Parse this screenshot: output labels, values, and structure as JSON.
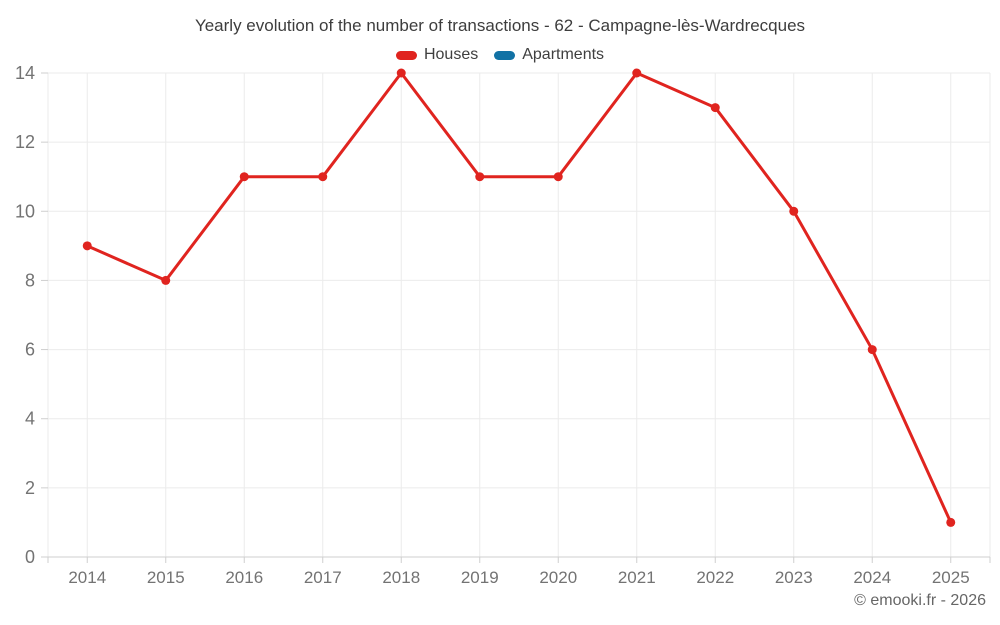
{
  "title": "Yearly evolution of the number of transactions - 62 - Campagne-lès-Wardrecques",
  "footer": "© emooki.fr - 2026",
  "legend": {
    "items": [
      {
        "label": "Houses",
        "color": "#e0241f"
      },
      {
        "label": "Apartments",
        "color": "#1272a5"
      }
    ]
  },
  "colors": {
    "grid": "#ebebeb",
    "axis": "#cfcfcf",
    "tick_label": "#737373",
    "title": "#3d3d3d"
  },
  "chart_data": {
    "type": "line",
    "title": "Yearly evolution of the number of transactions - 62 - Campagne-lès-Wardrecques",
    "categories": [
      "2014",
      "2015",
      "2016",
      "2017",
      "2018",
      "2019",
      "2020",
      "2021",
      "2022",
      "2023",
      "2024",
      "2025"
    ],
    "series": [
      {
        "name": "Houses",
        "color": "#e0241f",
        "marker": true,
        "values": [
          9,
          8,
          11,
          11,
          14,
          11,
          11,
          14,
          13,
          10,
          6,
          1
        ]
      },
      {
        "name": "Apartments",
        "color": "#1272a5",
        "marker": true,
        "values": []
      }
    ],
    "xlabel": "",
    "ylabel": "",
    "ylim": [
      0,
      14
    ],
    "yticks": [
      0,
      2,
      4,
      6,
      8,
      10,
      12,
      14
    ],
    "grid": true,
    "legend_position": "top"
  }
}
